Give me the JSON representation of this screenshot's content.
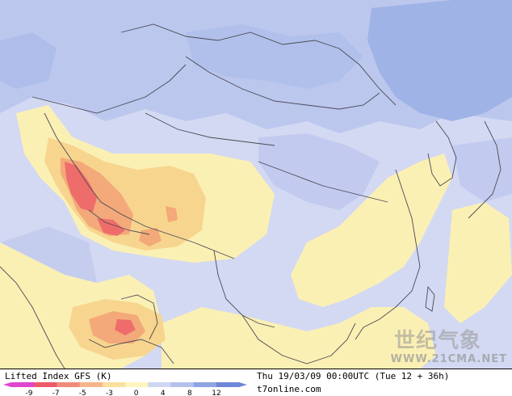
{
  "map": {
    "region": "East and South Asia",
    "colors": {
      "ocean_bg": "#d9def3",
      "very_stable": "#a5b8e6",
      "stable": "#bec8ee",
      "neutral": "#cdd3f2",
      "slightly_unstable": "#fbf1b2",
      "unstable": "#f6d38c",
      "very_unstable": "#f2a774",
      "extreme_unstable": "#ee6c6a",
      "border_line": "#4a4a55"
    }
  },
  "legend": {
    "title": "Lifted Index GFS (K)",
    "ticks": [
      "-9",
      "-7",
      "-5",
      "-3",
      "0",
      "4",
      "8",
      "12"
    ],
    "colors": [
      "#e045d0",
      "#ee5a6a",
      "#f08a7a",
      "#f6b58c",
      "#fbdf9c",
      "#fff4be",
      "#ced6f2",
      "#b3c2ec",
      "#8ea3e2",
      "#6f86d8"
    ]
  },
  "valid_time": "Thu 19/03/09 00:00UTC (Tue 12 + 36h)",
  "source": "t7online.com",
  "watermark": {
    "chinese": "世纪气象",
    "url": "WWW.21CMA.NET"
  }
}
